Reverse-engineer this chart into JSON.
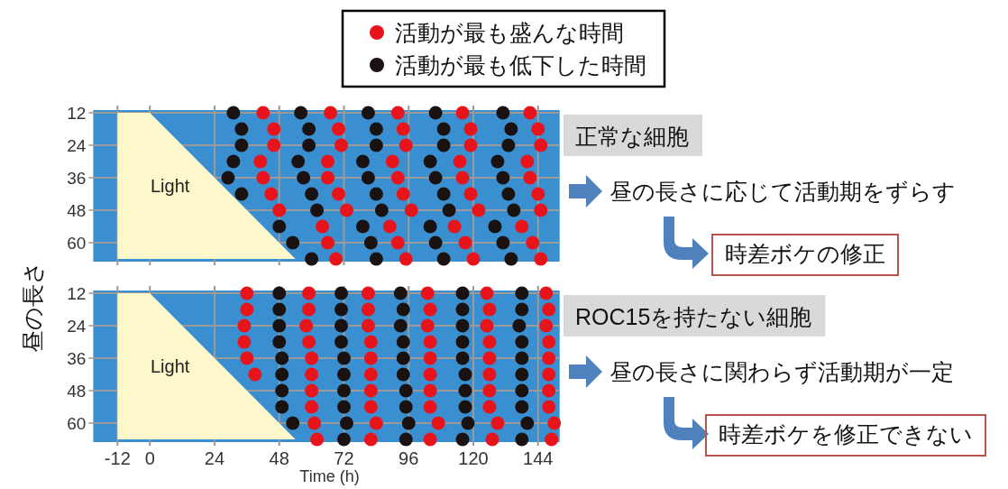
{
  "chart_data": [
    {
      "type": "scatter",
      "ylabel": "昼の長さ",
      "annotations": [
        "正常な細胞",
        "昼の長さに応じて活動期をずらす",
        "時差ボケの修正"
      ],
      "xlim": [
        -21,
        152
      ],
      "ylim": [
        67,
        11
      ],
      "xticks": [
        -12,
        0,
        24,
        48,
        72,
        96,
        120,
        144
      ],
      "yticks": [
        12,
        24,
        36,
        48,
        60
      ],
      "tick_labels": "y",
      "grid": true,
      "legend": "top",
      "series": [
        {
          "name": "Light",
          "type": "area",
          "color": "#fdf7cc",
          "x": [
            -12,
            0,
            54,
            -12
          ],
          "values": [
            12,
            12,
            66,
            66
          ]
        },
        {
          "name": "活動が最も盛んな時間",
          "color": "#e8141c",
          "marker": "circle",
          "x": [
            42,
            67,
            92,
            116,
            141,
            46,
            70,
            94,
            119,
            144,
            46,
            71,
            95,
            119,
            145,
            41,
            66,
            90,
            115,
            140,
            42,
            66,
            92,
            116,
            141,
            45,
            70,
            94,
            119,
            144,
            48,
            73,
            97,
            122,
            145,
            64,
            89,
            113,
            138,
            66,
            92,
            117,
            142,
            69,
            95,
            120,
            145
          ],
          "values": [
            12,
            12,
            12,
            12,
            12,
            18,
            18,
            18,
            18,
            18,
            24,
            24,
            24,
            24,
            24,
            30,
            30,
            30,
            30,
            30,
            36,
            36,
            36,
            36,
            36,
            42,
            42,
            42,
            42,
            42,
            48,
            48,
            48,
            48,
            48,
            54,
            54,
            54,
            54,
            60,
            60,
            60,
            60,
            66,
            66,
            66,
            66
          ]
        },
        {
          "name": "活動が最も低下した時間",
          "color": "#1a1111",
          "marker": "circle",
          "x": [
            31,
            56,
            81,
            106,
            131,
            34,
            59,
            84,
            109,
            134,
            34,
            59,
            84,
            109,
            133,
            31,
            55,
            79,
            104,
            129,
            29,
            57,
            81,
            106,
            131,
            34,
            60,
            84,
            109,
            133,
            62,
            86,
            111,
            135,
            48,
            79,
            104,
            128,
            53,
            82,
            106,
            131,
            60,
            84,
            109,
            134
          ],
          "values": [
            12,
            12,
            12,
            12,
            12,
            18,
            18,
            18,
            18,
            18,
            24,
            24,
            24,
            24,
            24,
            30,
            30,
            30,
            30,
            30,
            36,
            36,
            36,
            36,
            36,
            42,
            42,
            42,
            42,
            42,
            48,
            48,
            48,
            48,
            54,
            54,
            54,
            54,
            60,
            60,
            60,
            60,
            66,
            66,
            66,
            66
          ]
        }
      ]
    },
    {
      "type": "scatter",
      "xlabel": "Time (h)",
      "annotations": [
        "ROC15を持たない細胞",
        "昼の長さに関わらず活動期が一定",
        "時差ボケを修正できない"
      ],
      "xlim": [
        -21,
        152
      ],
      "ylim": [
        67,
        11
      ],
      "xticks": [
        -12,
        0,
        24,
        48,
        72,
        96,
        120,
        144
      ],
      "yticks": [
        12,
        24,
        36,
        48,
        60
      ],
      "grid": true,
      "series": [
        {
          "name": "Light",
          "type": "area",
          "color": "#fdf7cc",
          "x": [
            -12,
            0,
            54,
            -12
          ],
          "values": [
            12,
            12,
            66,
            66
          ]
        },
        {
          "color": "#e8141c",
          "marker": "circle",
          "x": [
            36,
            59,
            81,
            103,
            125,
            147,
            36,
            59,
            81,
            104,
            126,
            148,
            35,
            58,
            81,
            103,
            125,
            147,
            35,
            59,
            82,
            104,
            126,
            148,
            36,
            60,
            82,
            104,
            126,
            148,
            39,
            60,
            82,
            104,
            126,
            148,
            60,
            82,
            104,
            126,
            148,
            60,
            82,
            104,
            126,
            148,
            61,
            84,
            107,
            129,
            150,
            62,
            82,
            104,
            127,
            149
          ],
          "values": [
            12,
            12,
            12,
            12,
            12,
            12,
            18,
            18,
            18,
            18,
            18,
            18,
            24,
            24,
            24,
            24,
            24,
            24,
            30,
            30,
            30,
            30,
            30,
            30,
            36,
            36,
            36,
            36,
            36,
            36,
            42,
            42,
            42,
            42,
            42,
            42,
            48,
            48,
            48,
            48,
            48,
            54,
            54,
            54,
            54,
            54,
            60,
            60,
            60,
            60,
            60,
            66,
            66,
            66,
            66,
            66
          ]
        },
        {
          "color": "#1a1111",
          "marker": "circle",
          "x": [
            48,
            71,
            93,
            116,
            138,
            48,
            71,
            94,
            116,
            138,
            48,
            71,
            93,
            116,
            137,
            48,
            71,
            94,
            116,
            138,
            49,
            72,
            94,
            116,
            138,
            49,
            72,
            94,
            117,
            138,
            49,
            72,
            95,
            117,
            138,
            49,
            72,
            95,
            117,
            138,
            53,
            73,
            96,
            118,
            140,
            72,
            95,
            116,
            138
          ],
          "values": [
            12,
            12,
            12,
            12,
            12,
            18,
            18,
            18,
            18,
            18,
            24,
            24,
            24,
            24,
            24,
            30,
            30,
            30,
            30,
            30,
            36,
            36,
            36,
            36,
            36,
            42,
            42,
            42,
            42,
            42,
            48,
            48,
            48,
            48,
            48,
            54,
            54,
            54,
            54,
            54,
            60,
            60,
            60,
            60,
            60,
            66,
            66,
            66,
            66
          ]
        }
      ]
    }
  ]
}
